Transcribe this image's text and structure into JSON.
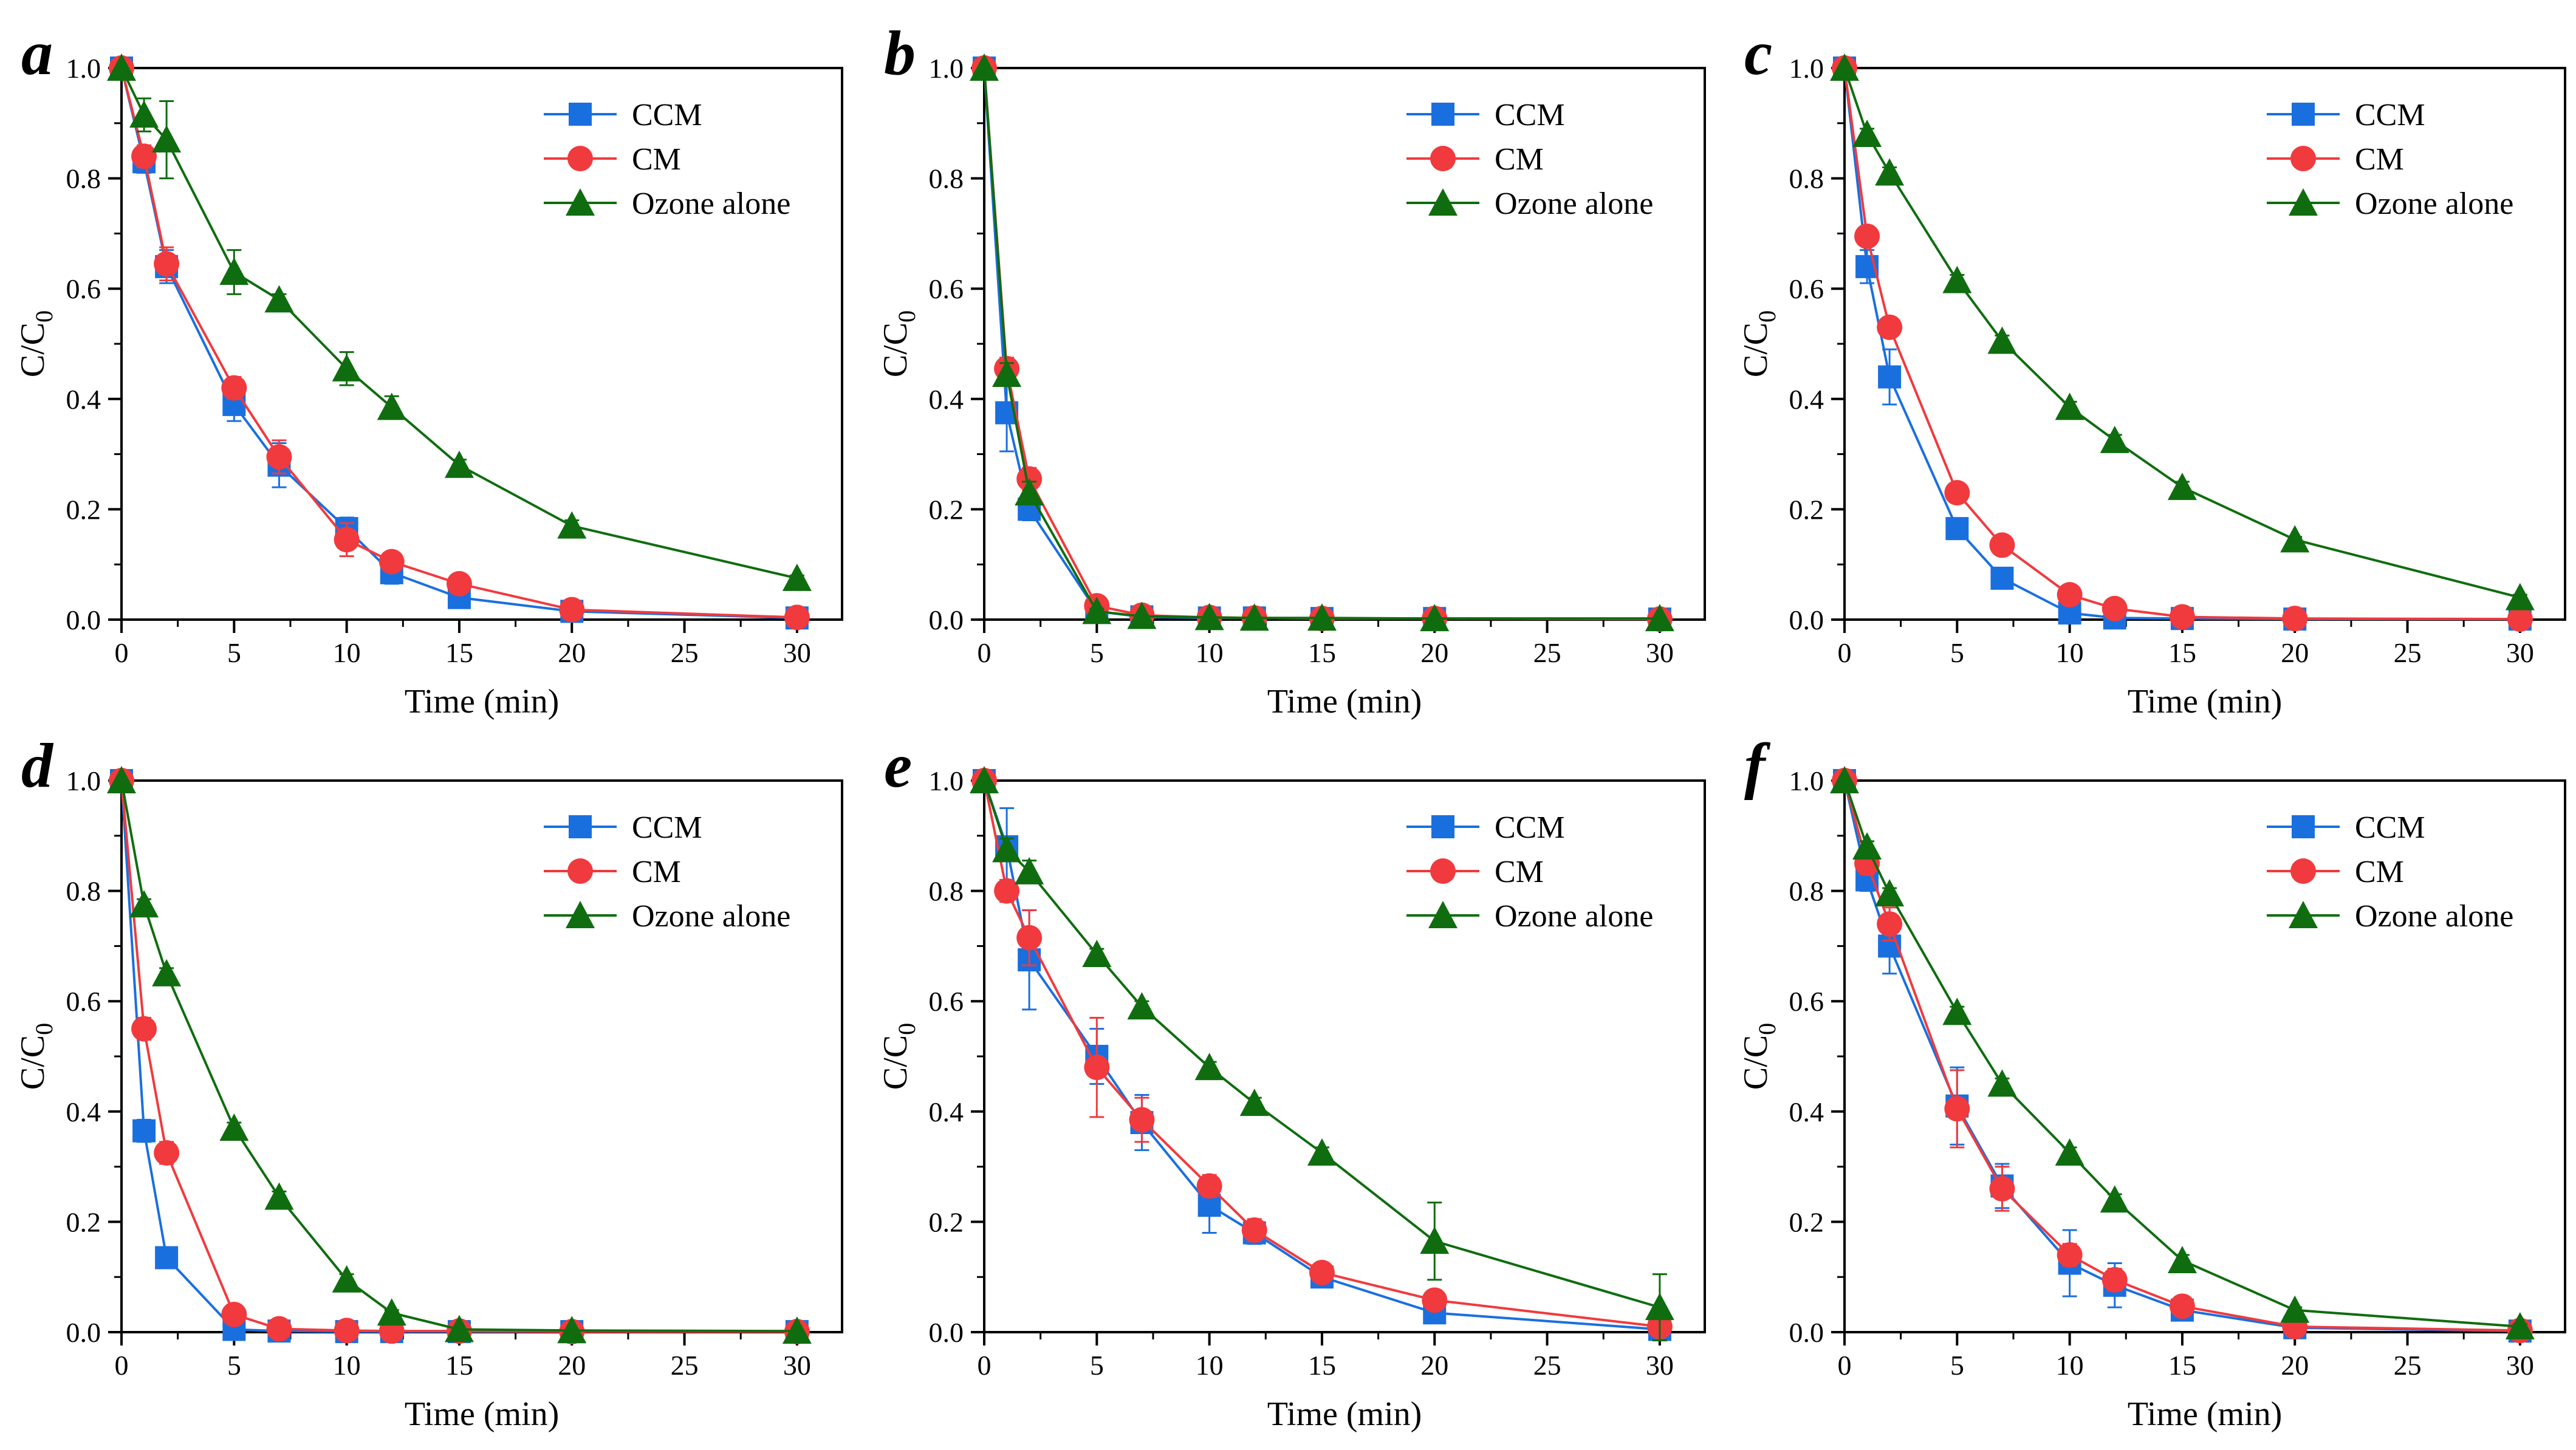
{
  "colors": {
    "CCM": "#1a6fdf",
    "CM": "#f03a3e",
    "Ozone alone": "#0f6d0f",
    "axis": "#000000"
  },
  "chart_data": [
    {
      "panel": "a",
      "type": "line",
      "xlabel": "Time (min)",
      "ylabel": "C/C0",
      "xlim": [
        0,
        32
      ],
      "ylim": [
        0,
        1.0
      ],
      "xticks": [
        0,
        5,
        10,
        15,
        20,
        25,
        30
      ],
      "yticks": [
        0.0,
        0.2,
        0.4,
        0.6,
        0.8,
        1.0
      ],
      "x": [
        0,
        1,
        2,
        5,
        7,
        10,
        12,
        15,
        20,
        30
      ],
      "series": [
        {
          "name": "CCM",
          "marker": "square",
          "values": [
            1.0,
            0.83,
            0.64,
            0.39,
            0.28,
            0.165,
            0.085,
            0.04,
            0.015,
            0.003
          ],
          "errors": [
            0,
            0.02,
            0.03,
            0.03,
            0.04,
            0.02,
            0.02,
            0.01,
            0.005,
            0
          ]
        },
        {
          "name": "CM",
          "marker": "circle",
          "values": [
            1.0,
            0.84,
            0.645,
            0.42,
            0.295,
            0.145,
            0.105,
            0.065,
            0.018,
            0.004
          ],
          "errors": [
            0,
            0.02,
            0.03,
            0.02,
            0.03,
            0.03,
            0.01,
            0.01,
            0.005,
            0
          ]
        },
        {
          "name": "Ozone alone",
          "marker": "triangle",
          "values": [
            1.0,
            0.915,
            0.87,
            0.63,
            0.58,
            0.455,
            0.385,
            0.28,
            0.17,
            0.075
          ],
          "errors": [
            0,
            0.03,
            0.07,
            0.04,
            0.01,
            0.03,
            0.02,
            0.01,
            0.01,
            0.005
          ]
        }
      ]
    },
    {
      "panel": "b",
      "type": "line",
      "xlabel": "Time (min)",
      "ylabel": "C/C0",
      "xlim": [
        0,
        32
      ],
      "ylim": [
        0,
        1.0
      ],
      "xticks": [
        0,
        5,
        10,
        15,
        20,
        25,
        30
      ],
      "yticks": [
        0.0,
        0.2,
        0.4,
        0.6,
        0.8,
        1.0
      ],
      "x": [
        0,
        1,
        2,
        5,
        7,
        10,
        12,
        15,
        20,
        30
      ],
      "series": [
        {
          "name": "CCM",
          "marker": "square",
          "values": [
            1.0,
            0.375,
            0.2,
            0.015,
            0.005,
            0.003,
            0.003,
            0.002,
            0.002,
            0.001
          ],
          "errors": [
            0,
            0.07,
            0.02,
            0.005,
            0,
            0,
            0,
            0,
            0,
            0
          ]
        },
        {
          "name": "CM",
          "marker": "circle",
          "values": [
            1.0,
            0.455,
            0.255,
            0.025,
            0.008,
            0.004,
            0.003,
            0.002,
            0.002,
            0.001
          ],
          "errors": [
            0,
            0.02,
            0.02,
            0.005,
            0,
            0,
            0,
            0,
            0,
            0
          ]
        },
        {
          "name": "Ozone alone",
          "marker": "triangle",
          "values": [
            1.0,
            0.445,
            0.23,
            0.015,
            0.006,
            0.004,
            0.003,
            0.003,
            0.002,
            0.002
          ],
          "errors": [
            0,
            0.02,
            0.02,
            0.005,
            0,
            0,
            0,
            0,
            0,
            0
          ]
        }
      ]
    },
    {
      "panel": "c",
      "type": "line",
      "xlabel": "Time (min)",
      "ylabel": "C/C0",
      "xlim": [
        0,
        32
      ],
      "ylim": [
        0,
        1.0
      ],
      "xticks": [
        0,
        5,
        10,
        15,
        20,
        25,
        30
      ],
      "yticks": [
        0.0,
        0.2,
        0.4,
        0.6,
        0.8,
        1.0
      ],
      "x": [
        0,
        1,
        2,
        5,
        7,
        10,
        12,
        15,
        20,
        30
      ],
      "series": [
        {
          "name": "CCM",
          "marker": "square",
          "values": [
            1.0,
            0.64,
            0.44,
            0.165,
            0.075,
            0.012,
            0.003,
            0.002,
            0.001,
            0.001
          ],
          "errors": [
            0,
            0.03,
            0.05,
            0.01,
            0.005,
            0,
            0,
            0,
            0,
            0
          ]
        },
        {
          "name": "CM",
          "marker": "circle",
          "values": [
            1.0,
            0.695,
            0.53,
            0.23,
            0.135,
            0.045,
            0.02,
            0.005,
            0.002,
            0.001
          ],
          "errors": [
            0,
            0.01,
            0.01,
            0.01,
            0.01,
            0.005,
            0,
            0,
            0,
            0
          ]
        },
        {
          "name": "Ozone alone",
          "marker": "triangle",
          "values": [
            1.0,
            0.88,
            0.81,
            0.615,
            0.505,
            0.385,
            0.325,
            0.24,
            0.145,
            0.04
          ],
          "errors": [
            0,
            0.01,
            0.01,
            0.01,
            0.01,
            0.01,
            0.01,
            0.01,
            0.005,
            0.005
          ]
        }
      ]
    },
    {
      "panel": "d",
      "type": "line",
      "xlabel": "Time (min)",
      "ylabel": "C/C0",
      "xlim": [
        0,
        32
      ],
      "ylim": [
        0,
        1.0
      ],
      "xticks": [
        0,
        5,
        10,
        15,
        20,
        25,
        30
      ],
      "yticks": [
        0.0,
        0.2,
        0.4,
        0.6,
        0.8,
        1.0
      ],
      "x": [
        0,
        1,
        2,
        5,
        7,
        10,
        12,
        15,
        20,
        30
      ],
      "series": [
        {
          "name": "CCM",
          "marker": "square",
          "values": [
            1.0,
            0.365,
            0.135,
            0.005,
            0.002,
            0.001,
            0.001,
            0.001,
            0.001,
            0.001
          ],
          "errors": [
            0,
            0.02,
            0.01,
            0.005,
            0,
            0,
            0,
            0,
            0,
            0
          ]
        },
        {
          "name": "CM",
          "marker": "circle",
          "values": [
            1.0,
            0.55,
            0.325,
            0.032,
            0.006,
            0.003,
            0.002,
            0.002,
            0.001,
            0.001
          ],
          "errors": [
            0,
            0.02,
            0.02,
            0.005,
            0,
            0,
            0,
            0,
            0,
            0
          ]
        },
        {
          "name": "Ozone alone",
          "marker": "triangle",
          "values": [
            1.0,
            0.775,
            0.65,
            0.37,
            0.245,
            0.095,
            0.035,
            0.005,
            0.003,
            0.002
          ],
          "errors": [
            0,
            0.01,
            0.01,
            0.01,
            0.01,
            0.01,
            0.005,
            0,
            0,
            0
          ]
        }
      ]
    },
    {
      "panel": "e",
      "type": "line",
      "xlabel": "Time (min)",
      "ylabel": "C/C0",
      "xlim": [
        0,
        32
      ],
      "ylim": [
        0,
        1.0
      ],
      "xticks": [
        0,
        5,
        10,
        15,
        20,
        25,
        30
      ],
      "yticks": [
        0.0,
        0.2,
        0.4,
        0.6,
        0.8,
        1.0
      ],
      "x": [
        0,
        1,
        2,
        5,
        7,
        10,
        12,
        15,
        20,
        30
      ],
      "series": [
        {
          "name": "CCM",
          "marker": "square",
          "values": [
            1.0,
            0.88,
            0.675,
            0.5,
            0.38,
            0.23,
            0.18,
            0.1,
            0.035,
            0.005
          ],
          "errors": [
            0,
            0.07,
            0.09,
            0.05,
            0.05,
            0.05,
            0.02,
            0.01,
            0.01,
            0
          ]
        },
        {
          "name": "CM",
          "marker": "circle",
          "values": [
            1.0,
            0.8,
            0.715,
            0.48,
            0.385,
            0.265,
            0.185,
            0.108,
            0.058,
            0.01
          ],
          "errors": [
            0,
            0.02,
            0.05,
            0.09,
            0.04,
            0.02,
            0.02,
            0.01,
            0.01,
            0
          ]
        },
        {
          "name": "Ozone alone",
          "marker": "triangle",
          "values": [
            1.0,
            0.875,
            0.835,
            0.685,
            0.59,
            0.48,
            0.415,
            0.325,
            0.165,
            0.045
          ],
          "errors": [
            0,
            0.02,
            0.02,
            0.01,
            0.01,
            0.01,
            0.01,
            0.01,
            0.07,
            0.06
          ]
        }
      ]
    },
    {
      "panel": "f",
      "type": "line",
      "xlabel": "Time (min)",
      "ylabel": "C/C0",
      "xlim": [
        0,
        32
      ],
      "ylim": [
        0,
        1.0
      ],
      "xticks": [
        0,
        5,
        10,
        15,
        20,
        25,
        30
      ],
      "yticks": [
        0.0,
        0.2,
        0.4,
        0.6,
        0.8,
        1.0
      ],
      "x": [
        0,
        1,
        2,
        5,
        7,
        10,
        12,
        15,
        20,
        30
      ],
      "series": [
        {
          "name": "CCM",
          "marker": "square",
          "values": [
            1.0,
            0.82,
            0.7,
            0.41,
            0.265,
            0.125,
            0.085,
            0.04,
            0.008,
            0.002
          ],
          "errors": [
            0,
            0.02,
            0.05,
            0.07,
            0.04,
            0.06,
            0.04,
            0.01,
            0.005,
            0
          ]
        },
        {
          "name": "CM",
          "marker": "circle",
          "values": [
            1.0,
            0.85,
            0.74,
            0.405,
            0.26,
            0.14,
            0.095,
            0.047,
            0.01,
            0.003
          ],
          "errors": [
            0,
            0.02,
            0.03,
            0.07,
            0.04,
            0.02,
            0.02,
            0.01,
            0.005,
            0
          ]
        },
        {
          "name": "Ozone alone",
          "marker": "triangle",
          "values": [
            1.0,
            0.88,
            0.795,
            0.58,
            0.45,
            0.325,
            0.24,
            0.13,
            0.04,
            0.01
          ],
          "errors": [
            0,
            0.01,
            0.01,
            0.01,
            0.01,
            0.01,
            0.01,
            0.01,
            0.005,
            0.005
          ]
        }
      ]
    }
  ]
}
